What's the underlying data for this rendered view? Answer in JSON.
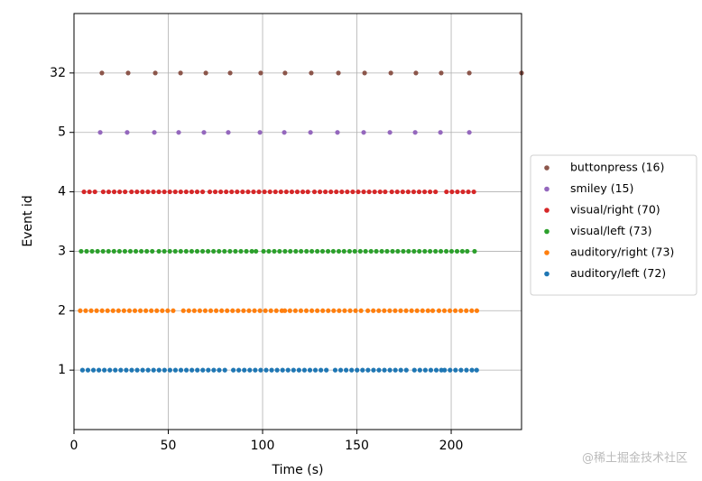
{
  "chart_data": {
    "type": "scatter",
    "xlabel": "Time (s)",
    "ylabel": "Event id",
    "xlim": [
      0,
      237.3
    ],
    "xticks": [
      0,
      50,
      100,
      150,
      200
    ],
    "grid": true,
    "y_categories": [
      "1",
      "2",
      "3",
      "4",
      "5",
      "32"
    ],
    "legend": "outside-right",
    "watermark": "@稀土掘金技术社区",
    "series": [
      {
        "name": "buttonpress (16)",
        "color": "#8c564b",
        "event_id": 32,
        "x": [
          14.8,
          28.7,
          43.1,
          56.5,
          69.9,
          82.8,
          99.0,
          111.9,
          125.8,
          140.2,
          154.1,
          168.0,
          181.3,
          194.7,
          209.6,
          237.3
        ]
      },
      {
        "name": "smiley (15)",
        "color": "#9467bd",
        "event_id": 5,
        "x": [
          13.9,
          28.2,
          42.6,
          55.5,
          68.9,
          81.8,
          98.6,
          111.5,
          125.4,
          139.7,
          153.6,
          167.5,
          180.9,
          194.3,
          209.6
        ]
      },
      {
        "name": "visual/right (70)",
        "color": "#d62728",
        "event_id": 4,
        "x": [
          5.3,
          8.2,
          11.1,
          15.5,
          18.4,
          21.3,
          24.2,
          27.1,
          30.5,
          33.4,
          36.3,
          39.2,
          42.1,
          45.0,
          47.9,
          50.8,
          53.7,
          56.6,
          59.5,
          62.4,
          65.3,
          68.2,
          72.0,
          74.9,
          77.8,
          80.7,
          83.6,
          86.5,
          89.4,
          92.3,
          95.2,
          98.1,
          101.0,
          103.9,
          106.8,
          109.7,
          112.6,
          115.5,
          118.4,
          121.3,
          124.0,
          127.5,
          130.4,
          133.3,
          136.2,
          139.1,
          142.0,
          144.9,
          147.8,
          150.7,
          153.6,
          156.5,
          159.4,
          162.3,
          165.0,
          168.5,
          171.4,
          174.3,
          177.2,
          180.1,
          183.0,
          185.9,
          188.8,
          191.7,
          197.5,
          200.4,
          203.3,
          206.2,
          209.1,
          212.0
        ]
      },
      {
        "name": "visual/left (73)",
        "color": "#2ca02c",
        "event_id": 3,
        "x": [
          3.8,
          6.7,
          9.6,
          12.5,
          15.4,
          18.3,
          21.2,
          24.1,
          27.0,
          29.9,
          32.8,
          35.7,
          38.6,
          41.5,
          45.0,
          47.9,
          50.8,
          53.7,
          56.6,
          59.5,
          62.4,
          65.3,
          68.2,
          71.1,
          74.0,
          76.9,
          79.8,
          82.7,
          85.6,
          88.5,
          91.4,
          94.3,
          96.5,
          100.5,
          103.3,
          106.2,
          109.0,
          111.9,
          114.7,
          117.6,
          120.4,
          123.3,
          126.1,
          129.0,
          131.8,
          134.7,
          137.5,
          140.4,
          143.2,
          146.1,
          148.9,
          151.8,
          154.6,
          157.5,
          160.3,
          163.2,
          166.0,
          168.9,
          171.7,
          174.6,
          177.4,
          180.3,
          183.1,
          186.0,
          188.8,
          191.7,
          194.5,
          197.4,
          200.2,
          203.1,
          205.9,
          208.5,
          212.4
        ]
      },
      {
        "name": "auditory/right (73)",
        "color": "#ff7f0e",
        "event_id": 2,
        "x": [
          3.3,
          6.2,
          9.1,
          12.0,
          14.9,
          17.8,
          20.7,
          23.6,
          26.5,
          29.4,
          32.3,
          35.2,
          38.1,
          41.0,
          43.9,
          46.8,
          49.7,
          52.6,
          58.0,
          60.9,
          63.8,
          66.7,
          69.6,
          72.5,
          75.4,
          78.3,
          81.2,
          84.1,
          87.0,
          89.9,
          92.8,
          95.7,
          98.6,
          101.5,
          104.4,
          107.3,
          110.2,
          111.8,
          114.5,
          117.4,
          120.3,
          123.2,
          126.1,
          129.0,
          131.9,
          134.8,
          137.7,
          140.6,
          143.5,
          146.4,
          149.3,
          152.2,
          155.8,
          158.7,
          161.6,
          164.5,
          167.4,
          170.3,
          173.2,
          176.1,
          179.0,
          181.9,
          184.8,
          187.7,
          190.2,
          193.5,
          196.4,
          199.3,
          202.2,
          205.1,
          208.0,
          210.9,
          213.6
        ]
      },
      {
        "name": "auditory/left (72)",
        "color": "#1f77b4",
        "event_id": 1,
        "x": [
          4.5,
          7.4,
          10.3,
          13.2,
          16.1,
          19.0,
          21.9,
          24.8,
          27.7,
          30.6,
          33.5,
          36.4,
          39.3,
          42.2,
          45.1,
          48.0,
          50.9,
          53.8,
          56.7,
          59.6,
          62.5,
          65.4,
          68.3,
          71.2,
          74.1,
          77.0,
          80.0,
          84.5,
          87.4,
          90.3,
          93.2,
          96.1,
          99.0,
          101.9,
          104.8,
          107.7,
          110.6,
          113.5,
          116.4,
          119.3,
          122.2,
          125.1,
          128.0,
          130.9,
          133.8,
          138.5,
          141.4,
          144.3,
          147.2,
          150.1,
          153.0,
          155.9,
          158.8,
          161.7,
          164.6,
          167.5,
          170.4,
          173.3,
          176.2,
          180.5,
          183.4,
          186.3,
          189.2,
          192.1,
          194.8,
          196.5,
          199.4,
          202.3,
          205.2,
          208.1,
          211.0,
          213.5
        ]
      }
    ]
  }
}
